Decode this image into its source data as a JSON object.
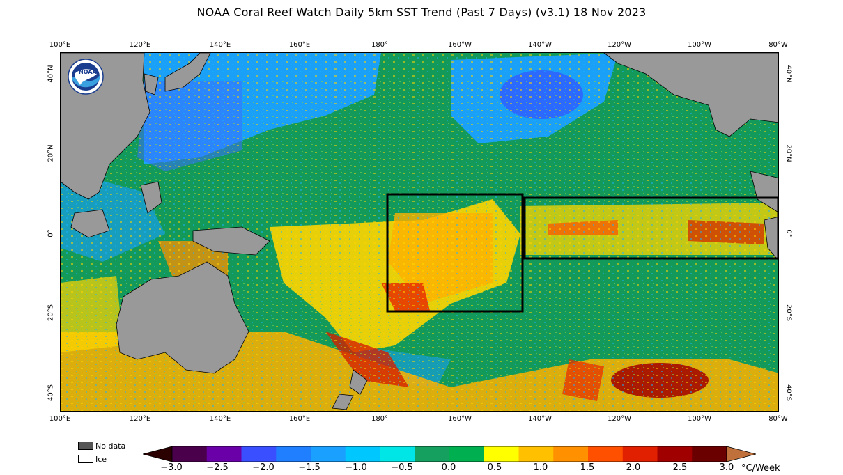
{
  "title": "NOAA Coral Reef Watch Daily 5km SST Trend (Past 7 Days)  (v3.1)   18 Nov 2023",
  "logo_text": "NOAA",
  "lon_ticks": [
    "100°E",
    "120°E",
    "140°E",
    "160°E",
    "180°",
    "160°W",
    "140°W",
    "120°W",
    "100°W",
    "80°W"
  ],
  "lat_ticks_left": [
    "40°N",
    "20°N",
    "0°",
    "20°S",
    "40°S"
  ],
  "lat_ticks_right": [
    "40°N",
    "20°N",
    "0°",
    "20°S",
    "40°S"
  ],
  "legend_keys": {
    "no_data": "No data",
    "ice": "Ice"
  },
  "colorbar": {
    "labels": [
      "−3.0",
      "−2.5",
      "−2.0",
      "−1.5",
      "−1.0",
      "−0.5",
      "0.0",
      "0.5",
      "1.0",
      "1.5",
      "2.0",
      "2.5",
      "3.0"
    ],
    "unit": "°C/Week",
    "colors": [
      "#4b004b",
      "#6a00a8",
      "#3a4fff",
      "#1f7fff",
      "#1aa0ff",
      "#00c8ff",
      "#00e5e5",
      "#16a060",
      "#00b050",
      "#ffff00",
      "#ffc000",
      "#ff9000",
      "#ff5000",
      "#e02000",
      "#a00000",
      "#6a0000"
    ]
  },
  "map_colors": {
    "land": "#999999",
    "ocean_green": "#139a5a",
    "cool_blue": "#1aa0ff",
    "warm_yellow": "#ffd500",
    "warm_orange": "#ff9a00",
    "hot_red": "#d42000"
  }
}
